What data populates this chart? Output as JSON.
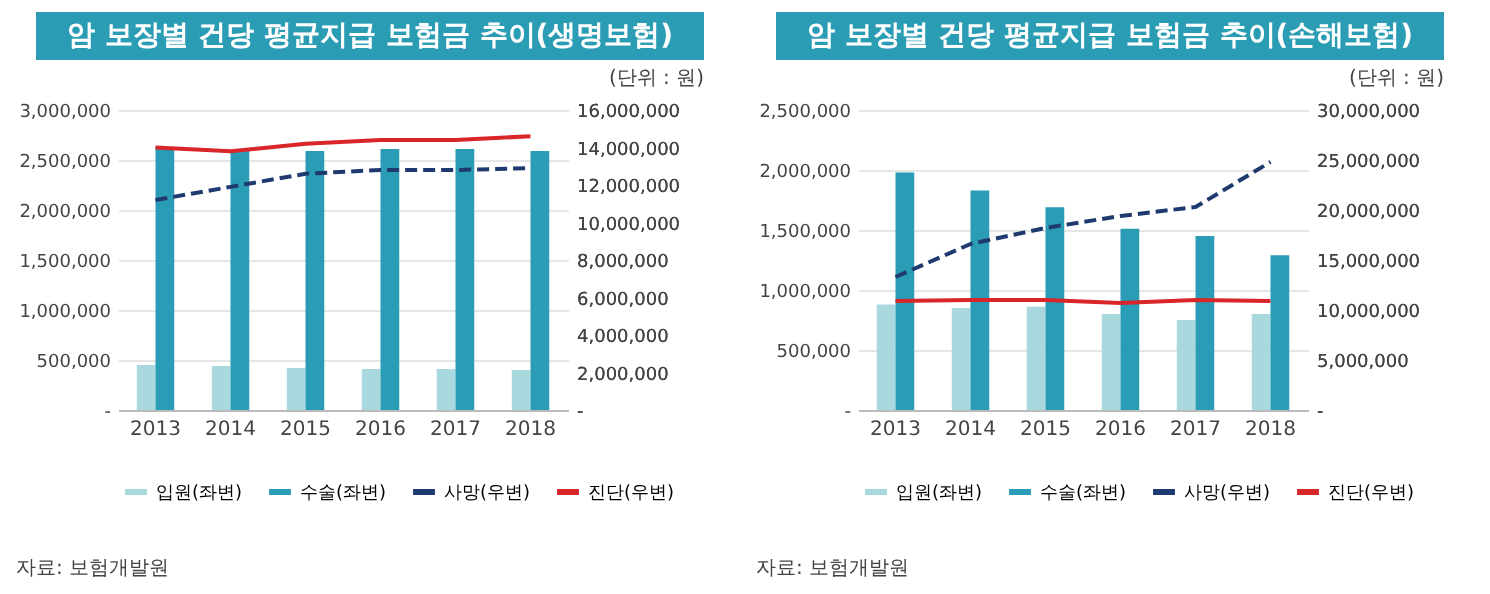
{
  "chart_data": [
    {
      "type": "bar",
      "title": "암 보장별 건당 평균지급 보험금 추이(생명보험)",
      "annotations": [
        "(단위 : 원)",
        "자료: 보험개발원"
      ],
      "categories": [
        "2013",
        "2014",
        "2015",
        "2016",
        "2017",
        "2018"
      ],
      "series": [
        {
          "name": "입원(좌변)",
          "color": "#a9d8df",
          "values": [
            450000,
            440000,
            420000,
            410000,
            410000,
            400000
          ]
        },
        {
          "name": "수술(좌변)",
          "color": "#2a9cb6",
          "values": [
            2630000,
            2590000,
            2590000,
            2610000,
            2610000,
            2590000
          ]
        },
        {
          "name": "사망(우변)",
          "type": "line",
          "axis": "y2",
          "line_style": "dashed",
          "color": "#1f3a6e",
          "values": [
            11200000,
            11900000,
            12600000,
            12800000,
            12800000,
            12900000
          ]
        },
        {
          "name": "진단(우변)",
          "type": "line",
          "axis": "y2",
          "line_style": "solid",
          "color": "#d8262b",
          "values": [
            14000000,
            13800000,
            14200000,
            14400000,
            14400000,
            14600000
          ]
        }
      ],
      "ylim": [
        0,
        3000000
      ],
      "yticks": [
        {
          "value": 0,
          "label": "-"
        },
        {
          "value": 500000,
          "label": "500,000"
        },
        {
          "value": 1000000,
          "label": "1,000,000"
        },
        {
          "value": 1500000,
          "label": "1,500,000"
        },
        {
          "value": 2000000,
          "label": "2,000,000"
        },
        {
          "value": 2500000,
          "label": "2,500,000"
        },
        {
          "value": 3000000,
          "label": "3,000,000"
        }
      ],
      "y2lim": [
        0,
        16000000
      ],
      "y2ticks": [
        {
          "value": 0,
          "label": "-"
        },
        {
          "value": 2000000,
          "label": "2,000,000"
        },
        {
          "value": 4000000,
          "label": "4,000,000"
        },
        {
          "value": 6000000,
          "label": "6,000,000"
        },
        {
          "value": 8000000,
          "label": "8,000,000"
        },
        {
          "value": 10000000,
          "label": "10,000,000"
        },
        {
          "value": 12000000,
          "label": "12,000,000"
        },
        {
          "value": 14000000,
          "label": "14,000,000"
        },
        {
          "value": 16000000,
          "label": "16,000,000"
        }
      ],
      "grid": "y",
      "legend": "bottom"
    },
    {
      "type": "bar",
      "title": "암 보장별 건당 평균지급 보험금 추이(손해보험)",
      "annotations": [
        "(단위 : 원)",
        "자료: 보험개발원"
      ],
      "categories": [
        "2013",
        "2014",
        "2015",
        "2016",
        "2017",
        "2018"
      ],
      "series": [
        {
          "name": "입원(좌변)",
          "color": "#a9d8df",
          "values": [
            880000,
            850000,
            860000,
            800000,
            750000,
            800000
          ]
        },
        {
          "name": "수술(좌변)",
          "color": "#2a9cb6",
          "values": [
            1980000,
            1830000,
            1690000,
            1510000,
            1450000,
            1290000
          ]
        },
        {
          "name": "사망(우변)",
          "type": "line",
          "axis": "y2",
          "line_style": "dashed",
          "color": "#1f3a6e",
          "values": [
            13300000,
            16600000,
            18200000,
            19400000,
            20300000,
            24800000
          ]
        },
        {
          "name": "진단(우변)",
          "type": "line",
          "axis": "y2",
          "line_style": "solid",
          "color": "#d8262b",
          "values": [
            10900000,
            11000000,
            11000000,
            10700000,
            11000000,
            10900000
          ]
        }
      ],
      "ylim": [
        0,
        2500000
      ],
      "yticks": [
        {
          "value": 0,
          "label": "-"
        },
        {
          "value": 500000,
          "label": "500,000"
        },
        {
          "value": 1000000,
          "label": "1,000,000"
        },
        {
          "value": 1500000,
          "label": "1,500,000"
        },
        {
          "value": 2000000,
          "label": "2,000,000"
        },
        {
          "value": 2500000,
          "label": "2,500,000"
        }
      ],
      "y2lim": [
        0,
        30000000
      ],
      "y2ticks": [
        {
          "value": 0,
          "label": "-"
        },
        {
          "value": 5000000,
          "label": "5,000,000"
        },
        {
          "value": 10000000,
          "label": "10,000,000"
        },
        {
          "value": 15000000,
          "label": "15,000,000"
        },
        {
          "value": 20000000,
          "label": "20,000,000"
        },
        {
          "value": 25000000,
          "label": "25,000,000"
        },
        {
          "value": 30000000,
          "label": "30,000,000"
        }
      ],
      "grid": "y",
      "legend": "bottom"
    }
  ]
}
